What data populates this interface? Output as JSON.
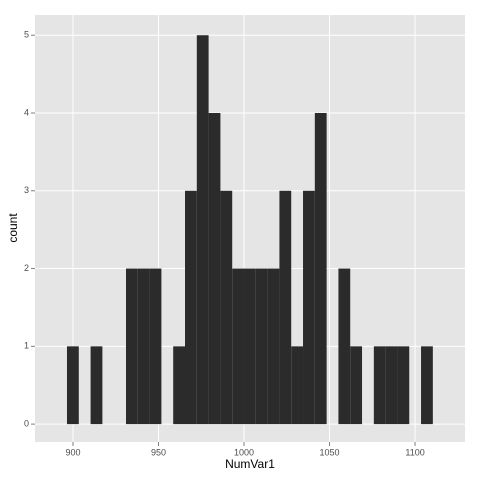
{
  "chart_data": {
    "type": "histogram",
    "x_label": "NumVar1",
    "y_label": "count",
    "bins": [
      896.5,
      903.4,
      910.3,
      917.2,
      924.1,
      931,
      937.9,
      944.8,
      951.7,
      958.6,
      965.5,
      972.4,
      979.3,
      986.2,
      993.1,
      1000,
      1006.9,
      1013.8,
      1020.7,
      1027.6,
      1034.5,
      1041.4,
      1048.3,
      1055.2,
      1062.1,
      1069,
      1075.9,
      1082.8,
      1089.7,
      1096.6,
      1103.5,
      1110.4
    ],
    "values": [
      1,
      0,
      1,
      0,
      0,
      2,
      2,
      2,
      0,
      1,
      3,
      5,
      4,
      3,
      2,
      2,
      2,
      2,
      3,
      1,
      3,
      4,
      0,
      2,
      1,
      0,
      1,
      1,
      1,
      0,
      1
    ],
    "color": "#2b2b2b",
    "xlim": [
      877.8,
      1129.2
    ],
    "ylim": [
      -0.23,
      5.26
    ],
    "xticks": [
      900,
      950,
      1000,
      1050,
      1100
    ],
    "yticks": [
      0,
      1,
      2,
      3,
      4,
      5
    ],
    "grid": true
  }
}
